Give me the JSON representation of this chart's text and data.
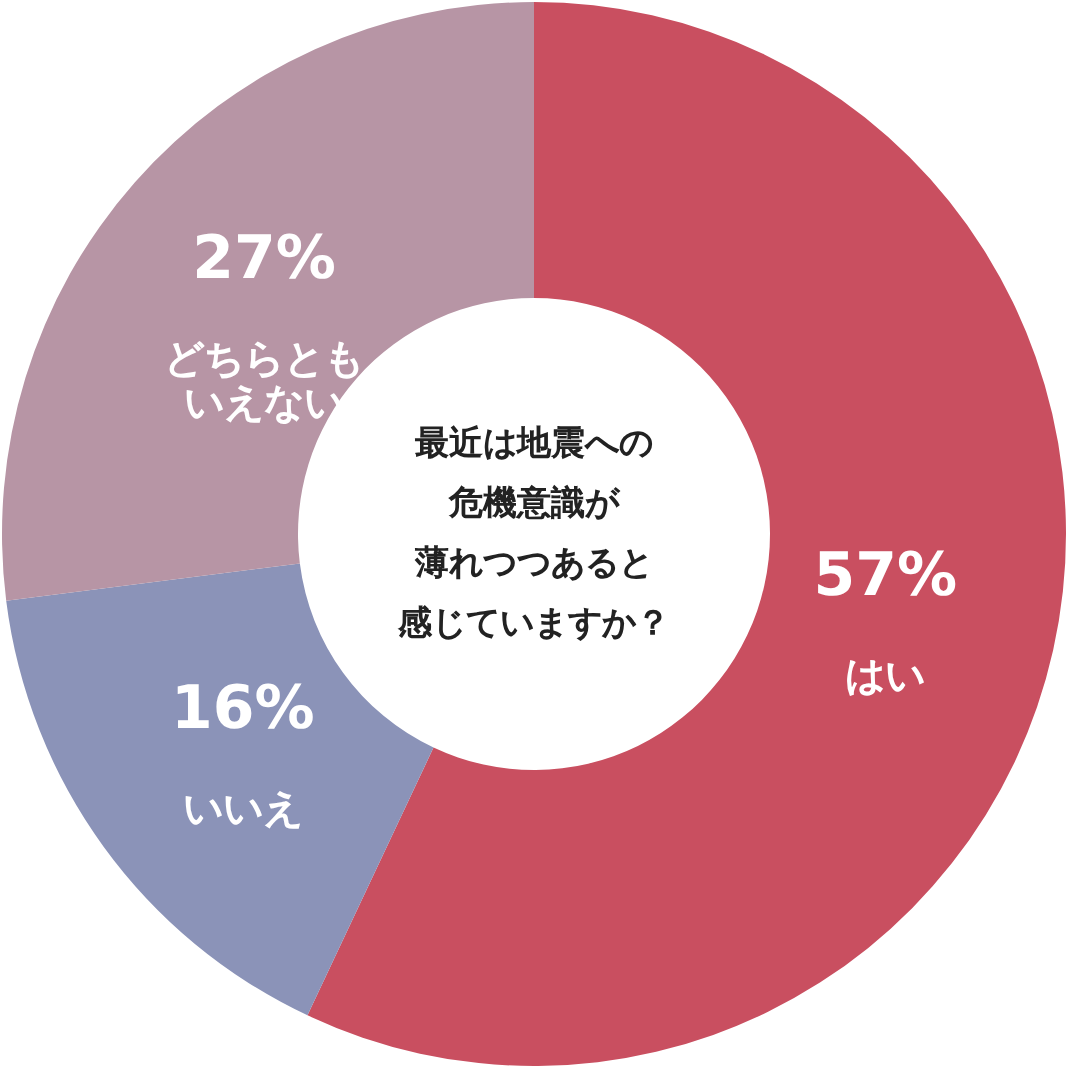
{
  "chart_data": {
    "type": "donut",
    "annotations": [
      "最近は地震への",
      "危機意識が",
      "薄れつつあると",
      "感じていますか？"
    ],
    "categories": [
      "はい",
      "いいえ",
      "どちらともいえない"
    ],
    "values": [
      57,
      16,
      27
    ],
    "colors": [
      "#c94f60",
      "#8b93b8",
      "#b795a5"
    ],
    "value_labels": [
      "57%",
      "16%",
      "27%"
    ]
  }
}
